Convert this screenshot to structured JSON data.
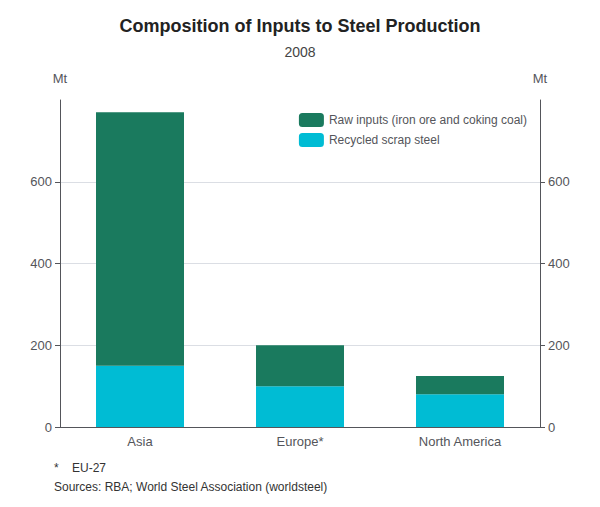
{
  "chart_data": {
    "type": "bar",
    "title": "Composition of Inputs to Steel Production",
    "subtitle": "2008",
    "categories": [
      "Asia",
      "Europe*",
      "North America"
    ],
    "series": [
      {
        "name": "Recycled scrap steel",
        "color": "#00bcd4",
        "values": [
          150,
          100,
          80
        ]
      },
      {
        "name": "Raw inputs (iron ore and coking coal)",
        "color": "#1a7a5e",
        "values": [
          620,
          100,
          45
        ]
      }
    ],
    "stacked": true,
    "ylabel": "Mt",
    "y2label": "Mt",
    "ylim": [
      0,
      800
    ],
    "yticks": [
      0,
      200,
      400,
      600
    ],
    "y2lim": [
      0,
      800
    ],
    "y2ticks": [
      0,
      200,
      400,
      600
    ],
    "grid": true,
    "legend": "upper right",
    "footnotes": [
      "*    EU-27",
      "Sources: RBA; World Steel Association (worldsteel)"
    ]
  }
}
